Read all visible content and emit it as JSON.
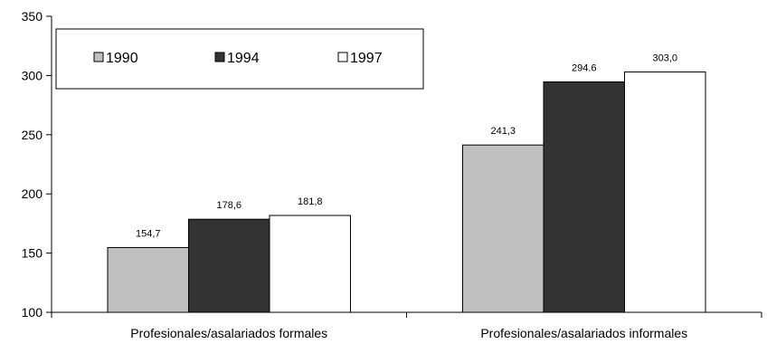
{
  "chart_data": {
    "type": "bar",
    "categories": [
      "Profesionales/asalariados formales",
      "Profesionales/asalariados informales"
    ],
    "series": [
      {
        "name": "1990",
        "values": [
          154.7,
          241.3
        ],
        "labels": [
          "154,7",
          "241,3"
        ],
        "color": "#c0c0c0"
      },
      {
        "name": "1994",
        "values": [
          178.6,
          294.6
        ],
        "labels": [
          "178,6",
          "294.6"
        ],
        "color": "#333333"
      },
      {
        "name": "1997",
        "values": [
          181.8,
          303.0
        ],
        "labels": [
          "181,8",
          "303,0"
        ],
        "color": "#ffffff"
      }
    ],
    "ylim": [
      100,
      350
    ],
    "yticks": [
      100,
      150,
      200,
      250,
      300,
      350
    ],
    "title": "",
    "xlabel": "",
    "ylabel": "",
    "grid": false,
    "legend_position": "top-left"
  }
}
